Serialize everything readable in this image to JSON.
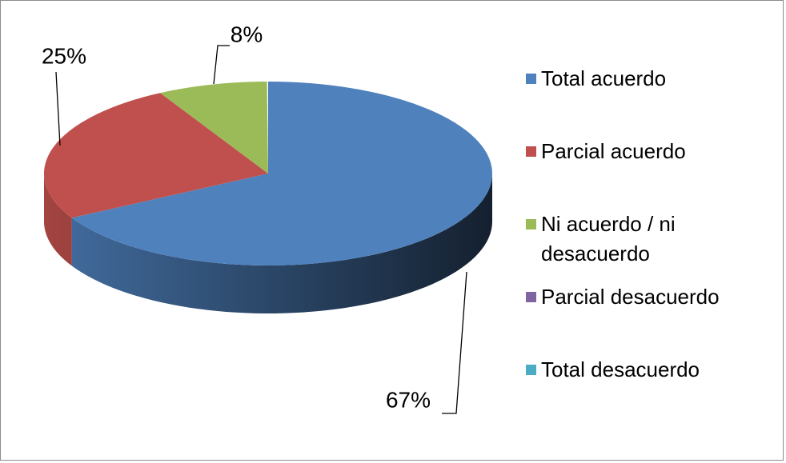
{
  "chart_data": {
    "type": "pie",
    "categories": [
      "Total acuerdo",
      "Parcial acuerdo",
      "Ni acuerdo / ni desacuerdo",
      "Parcial desacuerdo",
      "Total desacuerdo"
    ],
    "values": [
      67,
      25,
      8,
      0,
      0
    ],
    "value_labels": [
      "67%",
      "25%",
      "8%",
      null,
      null
    ],
    "colors": [
      "#4f81bd",
      "#c0504d",
      "#9bbb59",
      "#8064a2",
      "#4bacc6"
    ],
    "legend": "right"
  }
}
